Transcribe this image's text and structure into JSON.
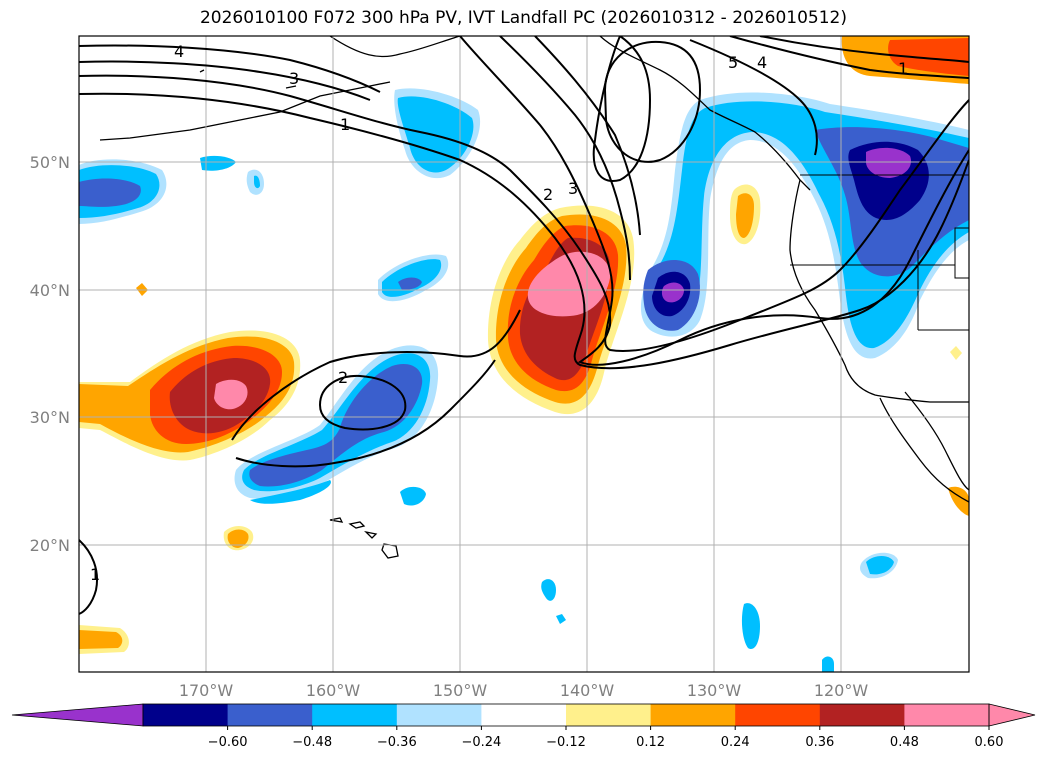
{
  "title": "2026010100 F072 300 hPa PV, IVT Landfall PC (2026010312 - 2026010512)",
  "map": {
    "lat_labels": [
      "50°N",
      "40°N",
      "30°N",
      "20°N"
    ],
    "lon_labels": [
      "170°W",
      "160°W",
      "150°W",
      "140°W",
      "130°W",
      "120°W"
    ],
    "contour_labels": [
      "4",
      "3",
      "1",
      "2",
      "3",
      "2",
      "5",
      "4",
      "1",
      "1"
    ]
  },
  "colorbar": {
    "colors": [
      "#9932cc",
      "#00008b",
      "#3a5fcd",
      "#00bfff",
      "#b0e2ff",
      "#ffffff",
      "#fff08c",
      "#ffa500",
      "#ff4500",
      "#b22222",
      "#ff88aa",
      "#ff88aa"
    ],
    "tick_labels": [
      "−0.60",
      "−0.48",
      "−0.36",
      "−0.24",
      "−0.12",
      "0.12",
      "0.24",
      "0.36",
      "0.48",
      "0.60"
    ]
  },
  "colors": {
    "grid": "#b0b0b0",
    "contour": "#000000",
    "tick_text": "#808080"
  }
}
